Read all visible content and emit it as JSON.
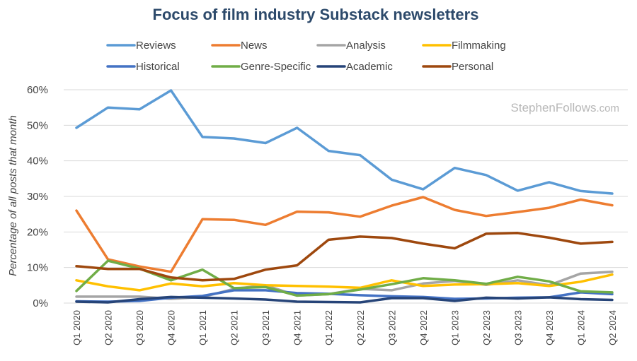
{
  "chart_data": {
    "type": "line",
    "title": "Focus of film industry Substack newsletters",
    "ylabel": "Percentage of all posts that month",
    "xlabel": "",
    "ylim": [
      0,
      60
    ],
    "yticks": [
      0,
      10,
      20,
      30,
      40,
      50,
      60
    ],
    "ytick_labels": [
      "0%",
      "10%",
      "20%",
      "30%",
      "40%",
      "50%",
      "60%"
    ],
    "grid": true,
    "legend_position": "top",
    "watermark": {
      "main": "StephenFollows",
      "suffix": ".com"
    },
    "categories": [
      "Q1 2020",
      "Q2 2020",
      "Q3 2020",
      "Q4 2020",
      "Q1 2021",
      "Q2 2021",
      "Q3 2021",
      "Q4 2021",
      "Q1 2022",
      "Q2 2022",
      "Q3 2022",
      "Q4 2022",
      "Q1 2023",
      "Q2 2023",
      "Q3 2023",
      "Q4 2023",
      "Q1 2024",
      "Q2 2024"
    ],
    "series": [
      {
        "name": "Reviews",
        "color": "#5b9bd5",
        "values": [
          49.3,
          55,
          54.5,
          59.8,
          46.7,
          46.3,
          45,
          49.3,
          42.8,
          41.6,
          34.7,
          32,
          38,
          36,
          31.6,
          34,
          31.5,
          30.8
        ]
      },
      {
        "name": "News",
        "color": "#ed7d31",
        "values": [
          26,
          12.3,
          10.3,
          8.8,
          23.6,
          23.4,
          22,
          25.7,
          25.5,
          24.3,
          27.4,
          29.8,
          26.2,
          24.5,
          25.6,
          26.8,
          29.1,
          27.5
        ]
      },
      {
        "name": "Analysis",
        "color": "#a5a5a5",
        "values": [
          1.8,
          1.8,
          1.8,
          1.2,
          1.7,
          4,
          5,
          2.1,
          2.5,
          4,
          3.6,
          5.5,
          6.2,
          5.1,
          6.4,
          5,
          8.3,
          8.8
        ]
      },
      {
        "name": "Filmmaking",
        "color": "#ffc000",
        "values": [
          6.4,
          4.7,
          3.6,
          5.5,
          4.7,
          5.6,
          5,
          4.8,
          4.6,
          4.3,
          6.4,
          4.8,
          5.2,
          5.3,
          5.6,
          4.8,
          6,
          8
        ]
      },
      {
        "name": "Historical",
        "color": "#4472c4",
        "values": [
          0.5,
          0.4,
          0.6,
          1.5,
          2,
          3.6,
          3.6,
          2.8,
          2.6,
          2.2,
          1.9,
          1.7,
          1.2,
          1.3,
          1.5,
          1.6,
          3,
          2.5
        ]
      },
      {
        "name": "Genre-Specific",
        "color": "#70ad47",
        "values": [
          3.4,
          11.9,
          9.7,
          6.4,
          9.4,
          4.2,
          4.5,
          2.1,
          2.5,
          3.8,
          5.3,
          7,
          6.4,
          5.4,
          7.4,
          6.1,
          3.3,
          3
        ]
      },
      {
        "name": "Academic",
        "color": "#264478",
        "values": [
          0.4,
          0.2,
          1.1,
          1.7,
          1.5,
          1.3,
          1,
          0.4,
          0.3,
          0.2,
          1.4,
          1.4,
          0.6,
          1.5,
          1.3,
          1.6,
          1.1,
          0.9
        ]
      },
      {
        "name": "Personal",
        "color": "#9e480e",
        "values": [
          10.4,
          9.6,
          9.6,
          7.2,
          6.4,
          6.8,
          9.4,
          10.6,
          17.8,
          18.7,
          18.3,
          16.7,
          15.4,
          19.5,
          19.7,
          18.4,
          16.7,
          17.2
        ]
      }
    ]
  }
}
